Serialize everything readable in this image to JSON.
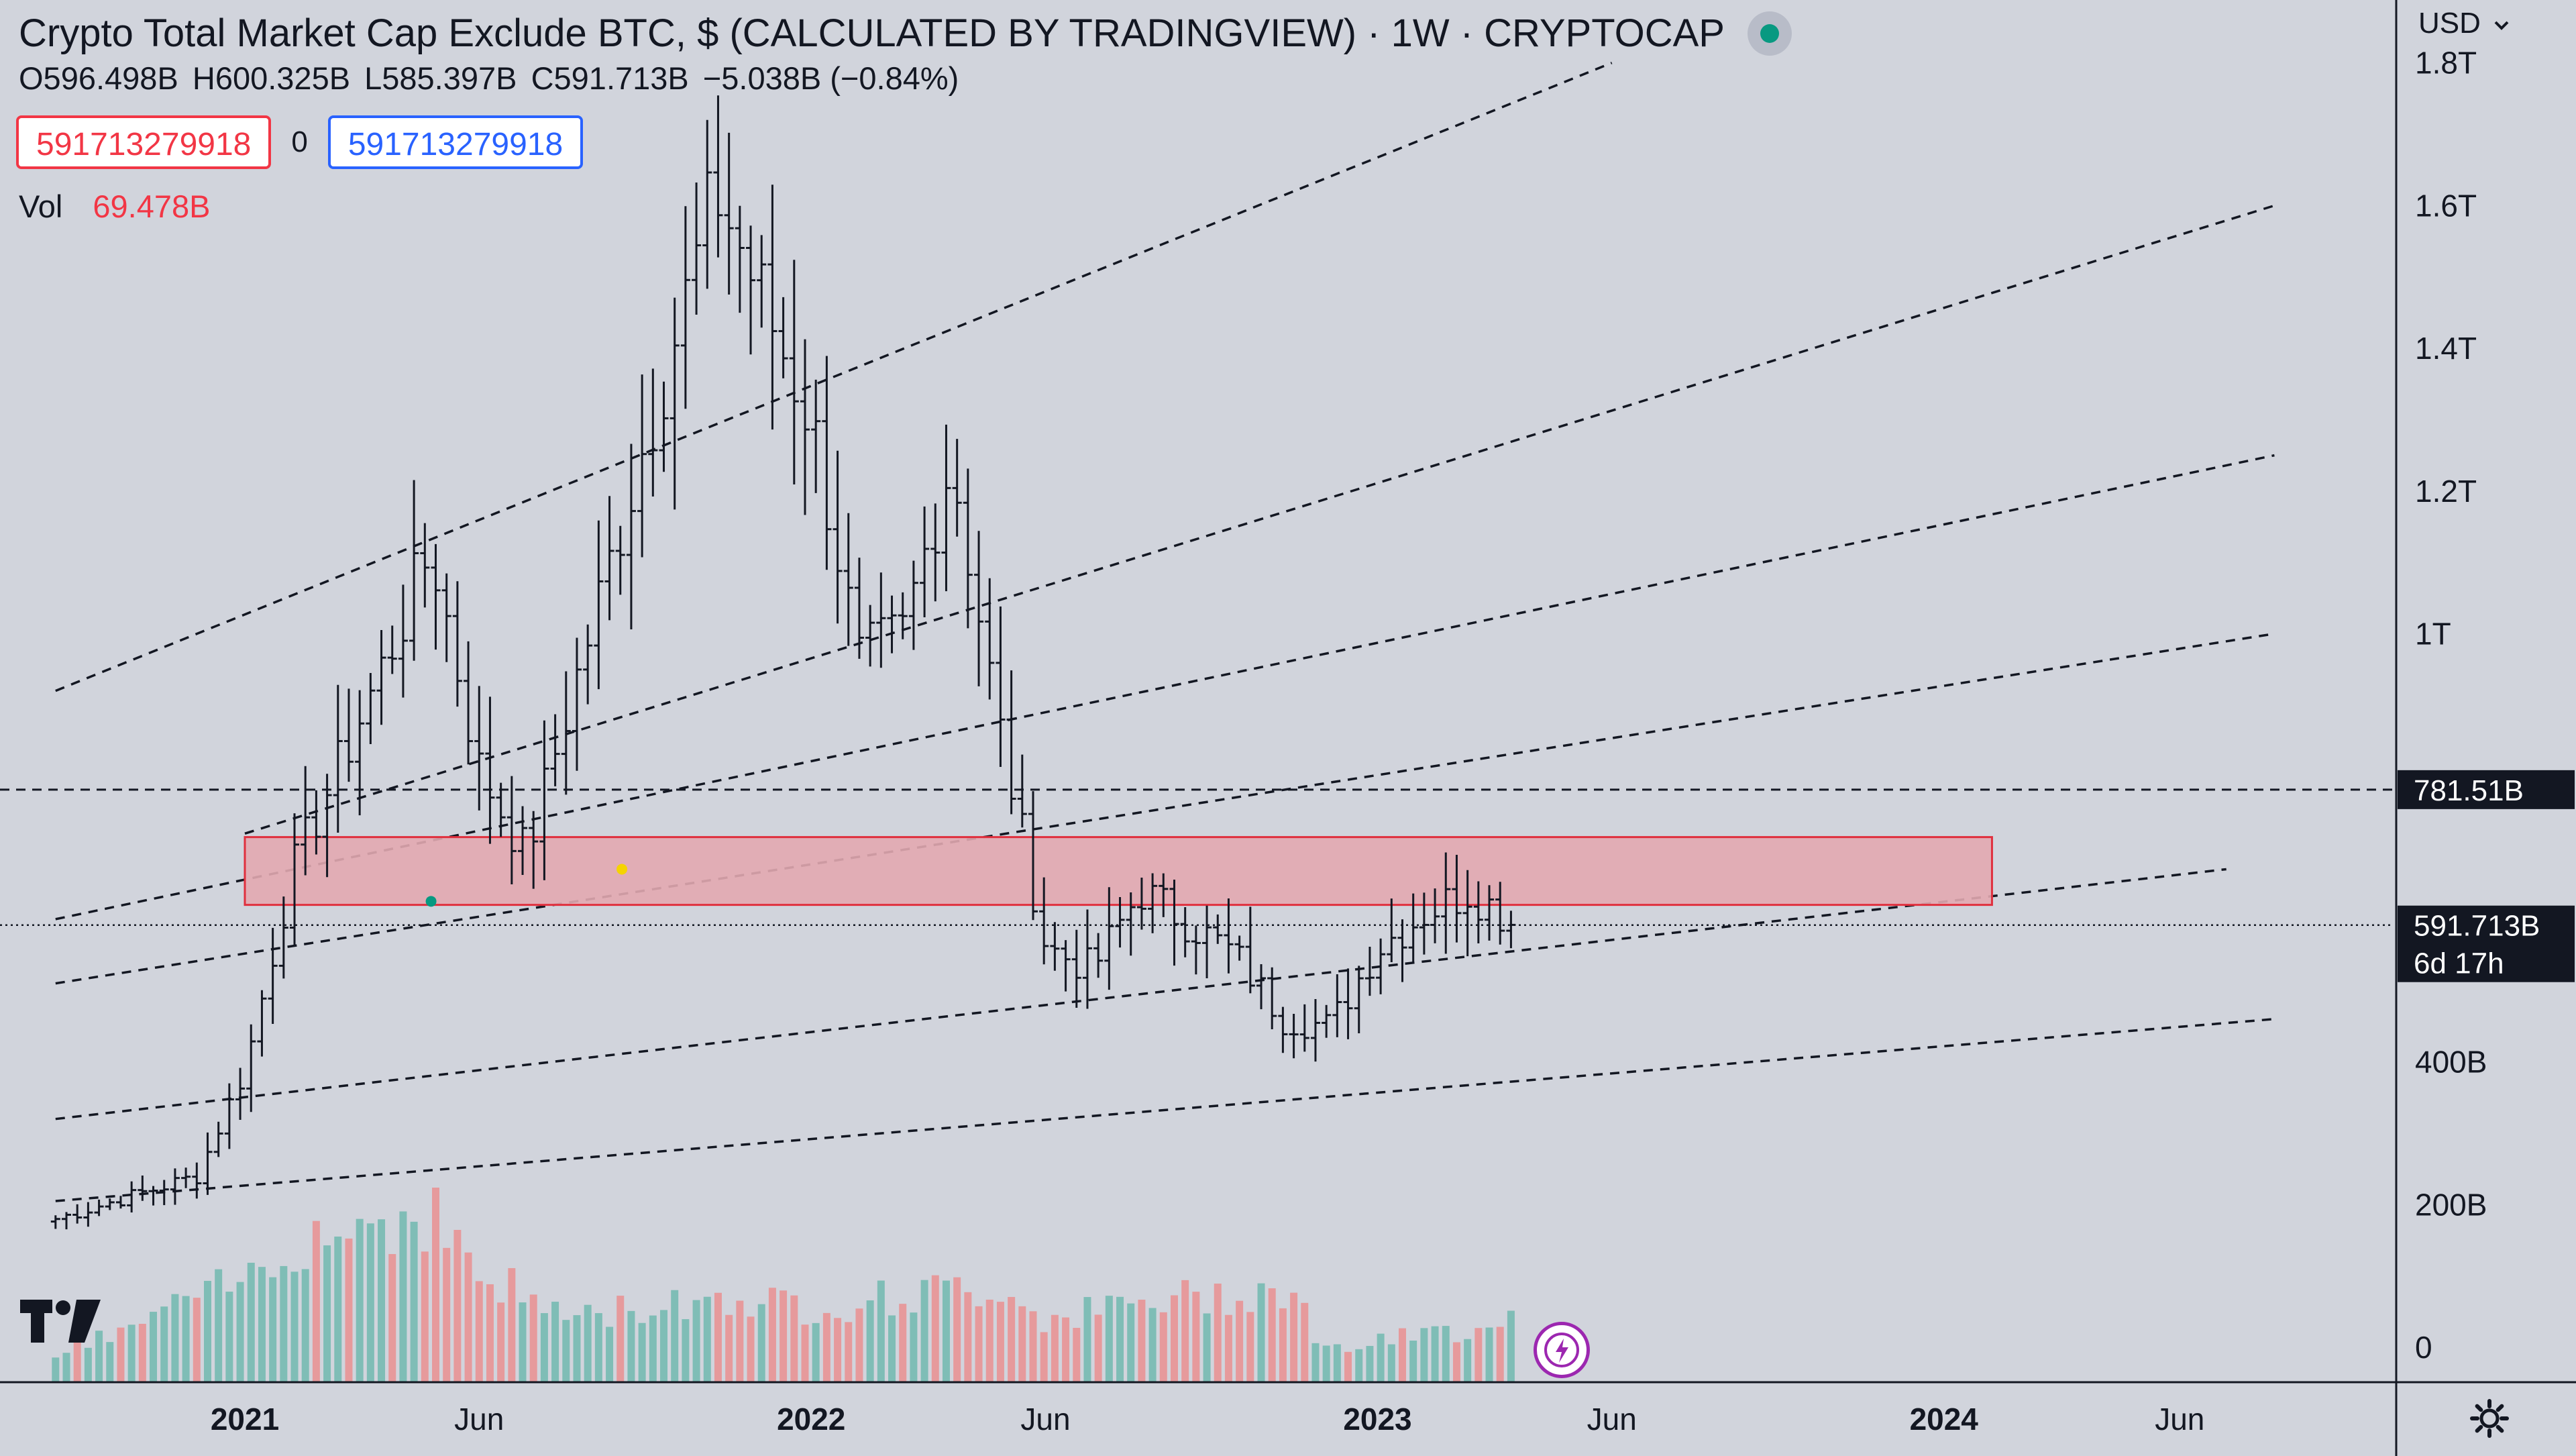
{
  "legend": {
    "title": "Crypto Total Market Cap Exclude BTC, $ (CALCULATED BY TRADINGVIEW) · 1W · CRYPTOCAP",
    "ohlc": {
      "open": "O596.498B",
      "high": "H600.325B",
      "low": "L585.397B",
      "close": "C591.713B",
      "change": "−5.038B (−0.84%)"
    },
    "input_left": "591713279918",
    "input_middle": "0",
    "input_right": "591713279918",
    "volume_label": "Vol",
    "volume_value": "69.478B"
  },
  "currency_selector": "USD",
  "colors": {
    "background": "#d1d4dc",
    "up": "#089981",
    "down": "#f23645",
    "volume_up": "#7fbdb6",
    "volume_down": "#e69a9c",
    "zone_fill": "#e2a8b0",
    "zone_stroke": "#e0303e"
  },
  "icons": [
    "status-dot-icon",
    "chevron-down-icon",
    "tradingview-logo-icon",
    "flash-icon",
    "gear-icon"
  ],
  "chart_data": {
    "type": "ohlc-bar",
    "interval": "1W",
    "x_axis": {
      "labels": [
        "2021",
        "Jun",
        "2022",
        "Jun",
        "2023",
        "Jun",
        "2024",
        "Jun"
      ],
      "bold_labels": [
        "2021",
        "2022",
        "2023",
        "2024"
      ],
      "visible_range": [
        "2020-09",
        "2024-09"
      ]
    },
    "y_axis": {
      "unit": "USD",
      "scale": "linear",
      "ylim": [
        0,
        1800000000000.0
      ],
      "tick_labels": [
        "0",
        "200B",
        "400B",
        "1T",
        "1.2T",
        "1.4T",
        "1.6T",
        "1.8T"
      ],
      "tick_values": [
        0,
        200000000000.0,
        400000000000.0,
        1000000000000.0,
        1200000000000.0,
        1400000000000.0,
        1600000000000.0,
        1800000000000.0
      ]
    },
    "price_badges": [
      {
        "value": "781.51B",
        "sublabel": "",
        "y": 781510000000.0
      },
      {
        "value": "591.713B",
        "sublabel": "6d 17h",
        "y": 591713000000.0
      }
    ],
    "bars_summary": {
      "start": "2020-09",
      "end": "2023-04",
      "anchors": [
        {
          "date": "2020-09",
          "close": 180000000000.0
        },
        {
          "date": "2020-12",
          "close": 240000000000.0
        },
        {
          "date": "2021-01",
          "close": 390000000000.0
        },
        {
          "date": "2021-02",
          "close": 670000000000.0
        },
        {
          "date": "2021-04",
          "close": 960000000000.0
        },
        {
          "date": "2021-05",
          "close": 1120000000000.0
        },
        {
          "date": "2021-06",
          "close": 810000000000.0
        },
        {
          "date": "2021-07",
          "close": 690000000000.0
        },
        {
          "date": "2021-09",
          "close": 1160000000000.0
        },
        {
          "date": "2021-11",
          "close": 1620000000000.0
        },
        {
          "date": "2022-01",
          "close": 1300000000000.0
        },
        {
          "date": "2022-02",
          "close": 960000000000.0
        },
        {
          "date": "2022-03",
          "close": 1000000000000.0
        },
        {
          "date": "2022-04",
          "close": 1250000000000.0
        },
        {
          "date": "2022-05",
          "close": 880000000000.0
        },
        {
          "date": "2022-06",
          "close": 560000000000.0
        },
        {
          "date": "2022-07",
          "close": 530000000000.0
        },
        {
          "date": "2022-08",
          "close": 640000000000.0
        },
        {
          "date": "2022-10",
          "close": 550000000000.0
        },
        {
          "date": "2022-11",
          "close": 460000000000.0
        },
        {
          "date": "2022-12",
          "close": 450000000000.0
        },
        {
          "date": "2023-01",
          "close": 560000000000.0
        },
        {
          "date": "2023-02",
          "close": 610000000000.0
        },
        {
          "date": "2023-03",
          "close": 640000000000.0
        },
        {
          "date": "2023-04",
          "close": 592000000000.0
        }
      ]
    },
    "volume": {
      "series": [
        {
          "date": "2020-09",
          "value": 24000000000.0
        },
        {
          "date": "2021-01",
          "value": 95000000000.0
        },
        {
          "date": "2021-02",
          "value": 135000000000.0
        },
        {
          "date": "2021-05",
          "value": 160000000000.0
        },
        {
          "date": "2021-06",
          "value": 100000000000.0
        },
        {
          "date": "2021-08",
          "value": 60000000000.0
        },
        {
          "date": "2021-11",
          "value": 80000000000.0
        },
        {
          "date": "2022-01",
          "value": 70000000000.0
        },
        {
          "date": "2022-05",
          "value": 90000000000.0
        },
        {
          "date": "2022-06",
          "value": 60000000000.0
        },
        {
          "date": "2022-11",
          "value": 90000000000.0
        },
        {
          "date": "2022-12",
          "value": 30000000000.0
        },
        {
          "date": "2023-03",
          "value": 50000000000.0
        },
        {
          "date": "2023-04",
          "value": 69478000000.0
        }
      ]
    },
    "horizontal_lines": [
      {
        "y": 781510000000.0,
        "style": "dashed"
      },
      {
        "y": 591713000000.0,
        "style": "dotted"
      }
    ],
    "resistance_zone": {
      "from": "2021-01",
      "to": "2024-02",
      "y_low": 620000000000.0,
      "y_high": 715000000000.0
    },
    "trendlines": [
      {
        "from": {
          "date": "2020-09",
          "y": 920000000000.0
        },
        "to": {
          "date": "2023-06",
          "y": 1800000000000.0
        }
      },
      {
        "from": {
          "date": "2021-01",
          "y": 720000000000.0
        },
        "to": {
          "date": "2024-08",
          "y": 1600000000000.0
        }
      },
      {
        "from": {
          "date": "2020-09",
          "y": 600000000000.0
        },
        "to": {
          "date": "2024-08",
          "y": 1250000000000.0
        }
      },
      {
        "from": {
          "date": "2020-09",
          "y": 510000000000.0
        },
        "to": {
          "date": "2024-08",
          "y": 1000000000000.0
        }
      },
      {
        "from": {
          "date": "2020-09",
          "y": 320000000000.0
        },
        "to": {
          "date": "2024-07",
          "y": 670000000000.0
        }
      },
      {
        "from": {
          "date": "2020-09",
          "y": 205000000000.0
        },
        "to": {
          "date": "2024-08",
          "y": 460000000000.0
        }
      }
    ],
    "markers": [
      {
        "date": "2021-05",
        "y": 625000000000.0,
        "color": "#089981"
      },
      {
        "date": "2021-09",
        "y": 670000000000.0,
        "color": "#f5d300"
      }
    ]
  }
}
